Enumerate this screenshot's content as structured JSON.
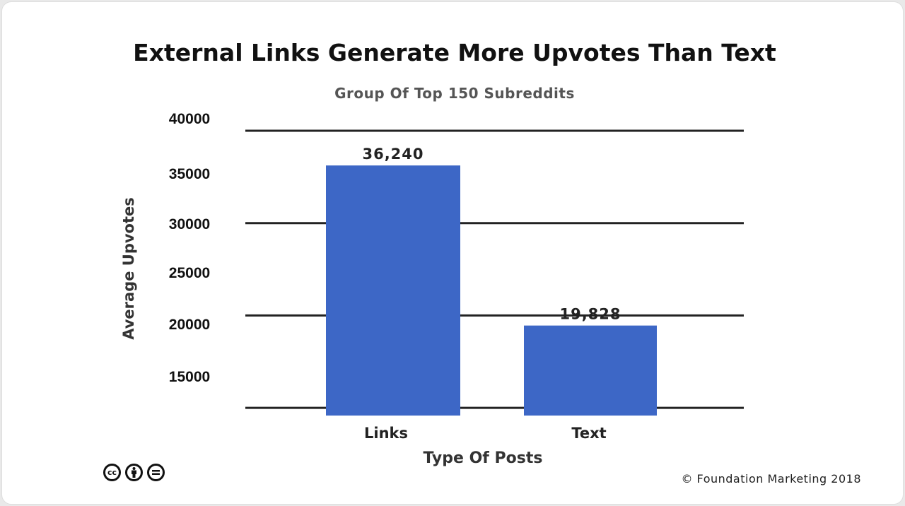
{
  "chart_data": {
    "type": "bar",
    "title": "External Links Generate More Upvotes Than Text",
    "subtitle": "Group Of Top 150 Subreddits",
    "xlabel": "Type Of Posts",
    "ylabel": "Average Upvotes",
    "categories": [
      "Links",
      "Text"
    ],
    "values": [
      36240,
      19828
    ],
    "data_labels": [
      "36,240",
      "19,828"
    ],
    "yticks": [
      "40000",
      "35000",
      "30000",
      "25000",
      "20000",
      "15000"
    ],
    "gridlines": [
      40000,
      30000,
      20000,
      10000
    ],
    "ylim": [
      10000,
      40000
    ],
    "grid": true,
    "bar_color": "#3d67c6"
  },
  "footer": {
    "credit": "© Foundation Marketing 2018",
    "license_icons": [
      "cc-icon",
      "by-icon",
      "nd-icon"
    ],
    "cc_text": "cc"
  }
}
